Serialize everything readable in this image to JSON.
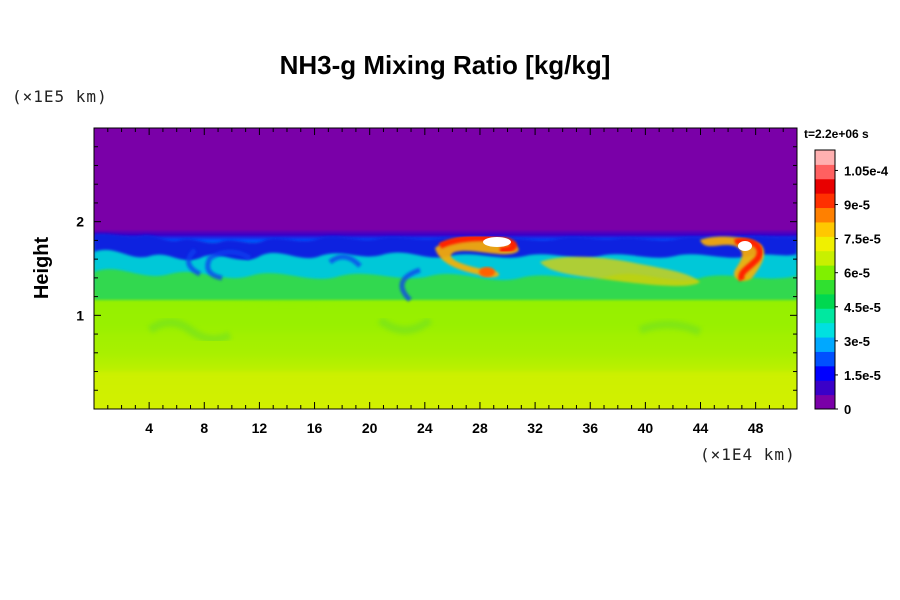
{
  "chart_data": {
    "type": "heatmap",
    "title": "NH3-g Mixing Ratio [kg/kg]",
    "ylabel": "Height",
    "xlabel": "",
    "x_unit": "(×1E4 km)",
    "y_unit": "(×1E5 km)",
    "time_label": "t=2.2e+06 s",
    "xlim": [
      0,
      51
    ],
    "ylim": [
      0,
      3
    ],
    "x_ticks": [
      "4",
      "8",
      "12",
      "16",
      "20",
      "24",
      "28",
      "32",
      "36",
      "40",
      "44",
      "48"
    ],
    "x_tick_values": [
      4,
      8,
      12,
      16,
      20,
      24,
      28,
      32,
      36,
      40,
      44,
      48
    ],
    "y_ticks": [
      "1",
      "2"
    ],
    "y_tick_values": [
      1,
      2
    ],
    "colorbar": {
      "min": 0,
      "max": 0.000114,
      "tick_labels": [
        "0",
        "1.5e-5",
        "3e-5",
        "4.5e-5",
        "6e-5",
        "7.5e-5",
        "9e-5",
        "1.05e-4"
      ],
      "tick_values": [
        0,
        1.5e-05,
        3e-05,
        4.5e-05,
        6e-05,
        7.5e-05,
        9e-05,
        0.000105
      ],
      "colors": [
        "#7a00a8",
        "#3a00c8",
        "#0000ff",
        "#0050ff",
        "#00a8ff",
        "#00e0e0",
        "#00e8a0",
        "#00d850",
        "#30e030",
        "#80f000",
        "#c8f000",
        "#f0f000",
        "#ffc800",
        "#ff8000",
        "#ff3000",
        "#e80000",
        "#ff6060",
        "#ffb0b0"
      ]
    },
    "field_summary": {
      "upper_layer": "≈0 above height ~1.85",
      "lower_layer": "≈6e-5 to 7.5e-5 below height ~1.3",
      "maxima_locations_x": [
        29,
        47
      ]
    }
  }
}
